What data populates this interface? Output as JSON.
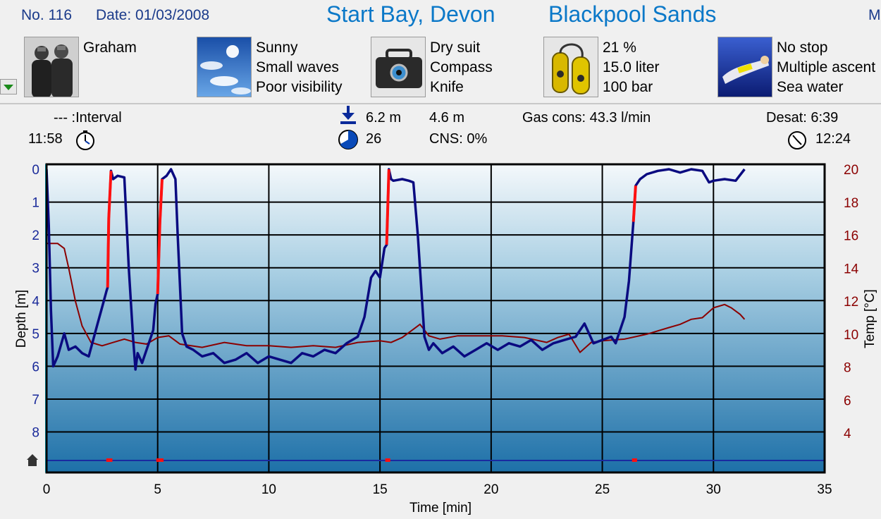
{
  "header": {
    "number": "No. 116",
    "date": "Date: 01/03/2008",
    "location": "Start Bay, Devon",
    "site": "Blackpool Sands",
    "truncated": "M"
  },
  "info": {
    "buddy": "Graham",
    "weather": [
      "Sunny",
      "Small waves",
      "Poor visibility"
    ],
    "equipment": [
      "Dry suit",
      "Compass",
      "Knife"
    ],
    "gas": [
      "21 %",
      "15.0 liter",
      "100 bar"
    ],
    "dive_type": [
      "No stop",
      "Multiple ascent",
      "Sea water"
    ]
  },
  "stats": {
    "interval": "--- :Interval",
    "entry_time": "11:58",
    "max_depth": "6.2 m",
    "avg_depth": "4.6 m",
    "duration": "26",
    "cns": "CNS:  0%",
    "gas_cons": "Gas cons: 43.3 l/min",
    "desat": "Desat:  6:39",
    "exit_time": "12:24"
  },
  "colors": {
    "depth": "#0a0a80",
    "ascent_warning": "#ff1010",
    "temp": "#8b0000",
    "surface_marker": "#00e0ff",
    "header_blue": "#0a78c8"
  },
  "chart_data": {
    "type": "line",
    "xlabel": "Time [min]",
    "ylabel": "Depth [m]",
    "y2label": "Temp [°C]",
    "xlim": [
      0,
      35
    ],
    "ylim": [
      0,
      9
    ],
    "y2lim": [
      2,
      20
    ],
    "xticks": [
      0,
      5,
      10,
      15,
      20,
      25,
      30,
      35
    ],
    "yticks": [
      0,
      1,
      2,
      3,
      4,
      5,
      6,
      7,
      8
    ],
    "y2ticks": [
      4,
      6,
      8,
      10,
      12,
      14,
      16,
      18,
      20
    ],
    "grid": true,
    "series": [
      {
        "name": "Depth",
        "axis": "left",
        "x": [
          0,
          0.1,
          0.2,
          0.3,
          0.5,
          0.8,
          1.0,
          1.3,
          1.6,
          1.9,
          2.1,
          2.3,
          2.5,
          2.7,
          2.75,
          2.8,
          2.9,
          3.0,
          3.2,
          3.5,
          3.7,
          3.9,
          4.0,
          4.1,
          4.3,
          4.6,
          4.8,
          4.9,
          5.0,
          5.1,
          5.2,
          5.4,
          5.6,
          5.8,
          5.9,
          6.1,
          6.3,
          6.6,
          7.0,
          7.5,
          8.0,
          8.5,
          9.0,
          9.5,
          10.0,
          10.5,
          11.0,
          11.5,
          12.0,
          12.5,
          13.0,
          13.5,
          14.0,
          14.3,
          14.6,
          14.8,
          15.0,
          15.2,
          15.3,
          15.4,
          15.5,
          15.6,
          16.0,
          16.3,
          16.5,
          16.7,
          17.0,
          17.2,
          17.4,
          17.8,
          18.3,
          18.8,
          19.3,
          19.8,
          20.3,
          20.8,
          21.3,
          21.8,
          22.3,
          22.8,
          23.3,
          23.8,
          24.2,
          24.6,
          25.0,
          25.4,
          25.6,
          25.8,
          26.0,
          26.2,
          26.4,
          26.5,
          26.7,
          27.0,
          27.5,
          28.0,
          28.5,
          29.0,
          29.5,
          29.8,
          30.0,
          30.5,
          31.0,
          31.4
        ],
        "y": [
          0,
          1.7,
          4.3,
          6.0,
          5.7,
          5.0,
          5.5,
          5.4,
          5.6,
          5.7,
          5.2,
          4.7,
          4.2,
          3.7,
          3.6,
          1.5,
          0.05,
          0.3,
          0.2,
          0.25,
          3.0,
          5.2,
          6.1,
          5.6,
          5.9,
          5.3,
          4.9,
          4.1,
          3.8,
          1.6,
          0.3,
          0.2,
          0.0,
          0.3,
          2.0,
          5.0,
          5.4,
          5.5,
          5.7,
          5.6,
          5.9,
          5.8,
          5.6,
          5.9,
          5.7,
          5.8,
          5.9,
          5.6,
          5.7,
          5.5,
          5.6,
          5.3,
          5.1,
          4.5,
          3.3,
          3.1,
          3.3,
          2.4,
          2.3,
          0.0,
          0.3,
          0.35,
          0.3,
          0.35,
          0.4,
          2.0,
          5.1,
          5.5,
          5.3,
          5.6,
          5.4,
          5.7,
          5.5,
          5.3,
          5.5,
          5.3,
          5.4,
          5.2,
          5.5,
          5.3,
          5.2,
          5.1,
          4.7,
          5.3,
          5.2,
          5.1,
          5.3,
          4.9,
          4.5,
          3.4,
          1.6,
          0.5,
          0.3,
          0.15,
          0.05,
          0.0,
          0.1,
          0.0,
          0.05,
          0.4,
          0.35,
          0.3,
          0.35,
          0.0
        ]
      },
      {
        "name": "Temp",
        "axis": "right",
        "x": [
          0,
          0.5,
          0.8,
          1.0,
          1.3,
          1.6,
          2.0,
          2.5,
          3.0,
          3.5,
          4.0,
          4.5,
          5.0,
          5.5,
          6.0,
          7.0,
          8.0,
          9.0,
          10.0,
          11.0,
          12.0,
          13.0,
          14.0,
          15.0,
          15.5,
          16.0,
          16.5,
          16.8,
          17.2,
          17.7,
          18.5,
          19.5,
          20.5,
          21.5,
          22.5,
          23.0,
          23.5,
          24.0,
          24.5,
          25.0,
          26.0,
          27.0,
          28.0,
          28.5,
          29.0,
          29.5,
          30.0,
          30.5,
          30.8,
          31.2,
          31.4
        ],
        "y": [
          15.5,
          15.5,
          15.2,
          14.0,
          12.0,
          10.5,
          9.5,
          9.3,
          9.5,
          9.7,
          9.5,
          9.4,
          9.8,
          9.9,
          9.4,
          9.2,
          9.5,
          9.3,
          9.3,
          9.2,
          9.3,
          9.2,
          9.5,
          9.6,
          9.5,
          9.8,
          10.3,
          10.6,
          9.9,
          9.7,
          9.9,
          9.9,
          9.9,
          9.8,
          9.5,
          9.8,
          10.0,
          8.9,
          9.5,
          9.6,
          9.7,
          10.0,
          10.4,
          10.6,
          10.9,
          11.0,
          11.6,
          11.8,
          11.6,
          11.2,
          10.9
        ]
      }
    ],
    "ascent_warnings": [
      [
        2.75,
        2.9
      ],
      [
        5.0,
        5.2
      ],
      [
        15.3,
        15.4
      ],
      [
        26.4,
        26.5
      ]
    ]
  }
}
